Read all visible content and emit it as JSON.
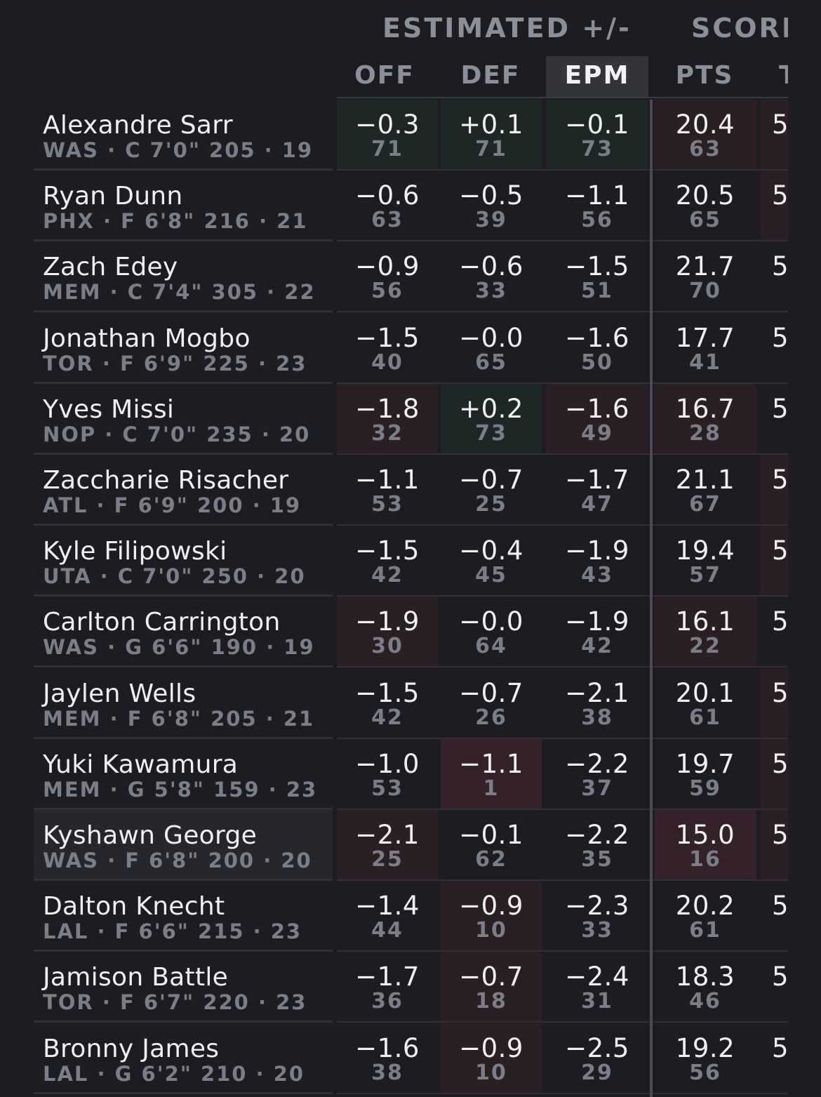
{
  "header": {
    "group_estimated": "ESTIMATED +/-",
    "group_scoring": "SCORII",
    "columns": [
      {
        "key": "off",
        "label": "OFF",
        "active": false
      },
      {
        "key": "def",
        "label": "DEF",
        "active": false
      },
      {
        "key": "epm",
        "label": "EPM",
        "active": true
      },
      {
        "key": "pts",
        "label": "PTS",
        "active": false
      }
    ],
    "partial_column_label": "T"
  },
  "colors": {
    "background": "#1c1c21",
    "active_header": "#34353b",
    "good_tint": "#1e2626",
    "bad_tint": "#2a1f22",
    "bad_strong": "#34222a",
    "highlight_row": "#26272d"
  },
  "players": [
    {
      "name": "Alexandre Sarr",
      "meta": "WAS · C 7'0\" 205 · 19",
      "off": "−0.3",
      "off_pct": "71",
      "def": "+0.1",
      "def_pct": "71",
      "epm": "−0.1",
      "epm_pct": "73",
      "pts": "20.4",
      "pts_pct": "63",
      "next": "5"
    },
    {
      "name": "Ryan Dunn",
      "meta": "PHX · F 6'8\" 216 · 21",
      "off": "−0.6",
      "off_pct": "63",
      "def": "−0.5",
      "def_pct": "39",
      "epm": "−1.1",
      "epm_pct": "56",
      "pts": "20.5",
      "pts_pct": "65",
      "next": "5"
    },
    {
      "name": "Zach Edey",
      "meta": "MEM · C 7'4\" 305 · 22",
      "off": "−0.9",
      "off_pct": "56",
      "def": "−0.6",
      "def_pct": "33",
      "epm": "−1.5",
      "epm_pct": "51",
      "pts": "21.7",
      "pts_pct": "70",
      "next": "5"
    },
    {
      "name": "Jonathan Mogbo",
      "meta": "TOR · F 6'9\" 225 · 23",
      "off": "−1.5",
      "off_pct": "40",
      "def": "−0.0",
      "def_pct": "65",
      "epm": "−1.6",
      "epm_pct": "50",
      "pts": "17.7",
      "pts_pct": "41",
      "next": "5"
    },
    {
      "name": "Yves Missi",
      "meta": "NOP · C 7'0\" 235 · 20",
      "off": "−1.8",
      "off_pct": "32",
      "def": "+0.2",
      "def_pct": "73",
      "epm": "−1.6",
      "epm_pct": "49",
      "pts": "16.7",
      "pts_pct": "28",
      "next": "5"
    },
    {
      "name": "Zaccharie Risacher",
      "meta": "ATL · F 6'9\" 200 · 19",
      "off": "−1.1",
      "off_pct": "53",
      "def": "−0.7",
      "def_pct": "25",
      "epm": "−1.7",
      "epm_pct": "47",
      "pts": "21.1",
      "pts_pct": "67",
      "next": "5"
    },
    {
      "name": "Kyle Filipowski",
      "meta": "UTA · C 7'0\" 250 · 20",
      "off": "−1.5",
      "off_pct": "42",
      "def": "−0.4",
      "def_pct": "45",
      "epm": "−1.9",
      "epm_pct": "43",
      "pts": "19.4",
      "pts_pct": "57",
      "next": "5"
    },
    {
      "name": "Carlton Carrington",
      "meta": "WAS · G 6'6\" 190 · 19",
      "off": "−1.9",
      "off_pct": "30",
      "def": "−0.0",
      "def_pct": "64",
      "epm": "−1.9",
      "epm_pct": "42",
      "pts": "16.1",
      "pts_pct": "22",
      "next": "5"
    },
    {
      "name": "Jaylen Wells",
      "meta": "MEM · F 6'8\" 205 · 21",
      "off": "−1.5",
      "off_pct": "42",
      "def": "−0.7",
      "def_pct": "26",
      "epm": "−2.1",
      "epm_pct": "38",
      "pts": "20.1",
      "pts_pct": "61",
      "next": "5"
    },
    {
      "name": "Yuki Kawamura",
      "meta": "MEM · G 5'8\" 159 · 23",
      "off": "−1.0",
      "off_pct": "53",
      "def": "−1.1",
      "def_pct": "1",
      "epm": "−2.2",
      "epm_pct": "37",
      "pts": "19.7",
      "pts_pct": "59",
      "next": "5"
    },
    {
      "name": "Kyshawn George",
      "meta": "WAS · F 6'8\" 200 · 20",
      "off": "−2.1",
      "off_pct": "25",
      "def": "−0.1",
      "def_pct": "62",
      "epm": "−2.2",
      "epm_pct": "35",
      "pts": "15.0",
      "pts_pct": "16",
      "next": "5"
    },
    {
      "name": "Dalton Knecht",
      "meta": "LAL · F 6'6\" 215 · 23",
      "off": "−1.4",
      "off_pct": "44",
      "def": "−0.9",
      "def_pct": "10",
      "epm": "−2.3",
      "epm_pct": "33",
      "pts": "20.2",
      "pts_pct": "61",
      "next": "5"
    },
    {
      "name": "Jamison Battle",
      "meta": "TOR · F 6'7\" 220 · 23",
      "off": "−1.7",
      "off_pct": "36",
      "def": "−0.7",
      "def_pct": "18",
      "epm": "−2.4",
      "epm_pct": "31",
      "pts": "18.3",
      "pts_pct": "46",
      "next": "5"
    },
    {
      "name": "Bronny James",
      "meta": "LAL · G 6'2\" 210 · 20",
      "off": "−1.6",
      "off_pct": "38",
      "def": "−0.9",
      "def_pct": "10",
      "epm": "−2.5",
      "epm_pct": "29",
      "pts": "19.2",
      "pts_pct": "56",
      "next": "5"
    }
  ]
}
